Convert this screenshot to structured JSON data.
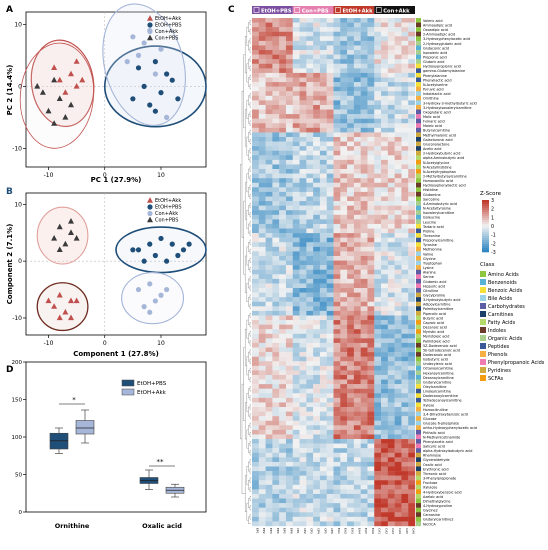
{
  "chart_data": [
    {
      "type": "scatter",
      "panel": "A",
      "xlabel": "PC 1 (27.9%)",
      "ylabel": "PC 2 (14.4%)",
      "xlim": [
        -14,
        18
      ],
      "ylim": [
        -13,
        12
      ],
      "xticks": [
        "-10",
        "0",
        "10"
      ],
      "yticks": [
        "-10",
        "0",
        "10"
      ],
      "legend": [
        "EtOH+Akk",
        "EtOH+PBS",
        "Con+Akk",
        "Con+PBS"
      ],
      "series": [
        {
          "name": "EtOH+Akk",
          "points": [
            [
              -8,
              1
            ],
            [
              -6,
              2
            ],
            [
              -5,
              0
            ],
            [
              -7,
              -1
            ],
            [
              -9,
              3
            ],
            [
              -5,
              4
            ],
            [
              -4,
              1
            ]
          ]
        },
        {
          "name": "EtOH+PBS",
          "points": [
            [
              6,
              3
            ],
            [
              9,
              4
            ],
            [
              11,
              2
            ],
            [
              7,
              0
            ],
            [
              10,
              -1
            ],
            [
              12,
              1
            ],
            [
              8,
              -3
            ],
            [
              13,
              -2
            ],
            [
              9,
              -4
            ],
            [
              5,
              -2
            ]
          ]
        },
        {
          "name": "Con+Akk",
          "points": [
            [
              5,
              8
            ],
            [
              7,
              7
            ],
            [
              8,
              9
            ],
            [
              6,
              5
            ],
            [
              10,
              6
            ],
            [
              4,
              4
            ],
            [
              9,
              2
            ],
            [
              11,
              -5
            ]
          ]
        },
        {
          "name": "Con+PBS",
          "points": [
            [
              -9,
              1
            ],
            [
              -11,
              -1
            ],
            [
              -8,
              -2
            ],
            [
              -10,
              -4
            ],
            [
              -6,
              -3
            ],
            [
              -7,
              -5
            ],
            [
              -12,
              0
            ],
            [
              -9,
              -6
            ]
          ]
        }
      ]
    },
    {
      "type": "scatter",
      "panel": "B",
      "xlabel": "Component 1 (27.8%)",
      "ylabel": "Component 2 (7.1%)",
      "xlim": [
        -14,
        18
      ],
      "ylim": [
        -13,
        12
      ],
      "xticks": [
        "-10",
        "0",
        "10"
      ],
      "yticks": [
        "-10",
        "0",
        "10"
      ],
      "legend": [
        "EtOH+Akk",
        "EtOH+PBS",
        "Con+Akk",
        "Con+PBS"
      ],
      "series": [
        {
          "name": "EtOH+Akk",
          "points": [
            [
              -8,
              -6
            ],
            [
              -6,
              -7
            ],
            [
              -9,
              -8
            ],
            [
              -7,
              -9
            ],
            [
              -5,
              -7
            ],
            [
              -10,
              -7
            ],
            [
              -6,
              -10
            ],
            [
              -8,
              -10
            ]
          ]
        },
        {
          "name": "EtOH+PBS",
          "points": [
            [
              6,
              2
            ],
            [
              8,
              3
            ],
            [
              10,
              4
            ],
            [
              12,
              3
            ],
            [
              14,
              2
            ],
            [
              7,
              0
            ],
            [
              9,
              1
            ],
            [
              11,
              0
            ],
            [
              13,
              1
            ],
            [
              5,
              2
            ],
            [
              15,
              3
            ]
          ]
        },
        {
          "name": "Con+Akk",
          "points": [
            [
              6,
              -5
            ],
            [
              8,
              -4
            ],
            [
              10,
              -6
            ],
            [
              7,
              -8
            ],
            [
              9,
              -7
            ],
            [
              11,
              -5
            ],
            [
              8,
              -9
            ]
          ]
        },
        {
          "name": "Con+PBS",
          "points": [
            [
              -8,
              6
            ],
            [
              -6,
              5
            ],
            [
              -9,
              4
            ],
            [
              -7,
              3
            ],
            [
              -5,
              4
            ],
            [
              -8,
              2
            ],
            [
              -6,
              7
            ]
          ]
        }
      ]
    },
    {
      "type": "box",
      "panel": "D",
      "ylim": [
        0,
        200
      ],
      "yticks": [
        "0",
        "50",
        "100",
        "150",
        "200"
      ],
      "categories": [
        "Ornithine",
        "Oxalic acid"
      ],
      "legend": [
        "EtOH+PBS",
        "EtOH+Akk"
      ],
      "series": [
        {
          "name": "EtOH+PBS",
          "boxes": [
            [
              78,
              84,
              95,
              105,
              112
            ],
            [
              30,
              38,
              42,
              46,
              56
            ]
          ]
        },
        {
          "name": "EtOH+Akk",
          "boxes": [
            [
              92,
              104,
              112,
              122,
              136
            ],
            [
              20,
              25,
              29,
              33,
              37
            ]
          ]
        }
      ],
      "significance": [
        "*",
        "**"
      ]
    },
    {
      "type": "heatmap",
      "panel": "C",
      "groups": [
        "EtOH+PBS",
        "Con+PBS",
        "EtOH+Akk",
        "Con+Akk"
      ],
      "scale_title": "Z-Score",
      "scale_ticks": [
        "3",
        "2",
        "1",
        "0",
        "-1",
        "-2",
        "-3"
      ],
      "class_title": "Class",
      "classes": [
        "Amino Acids",
        "Benzenoids",
        "Benzoic Acids",
        "Bile Acids",
        "Carbohydrates",
        "Carnitines",
        "Fatty Acids",
        "Indoles",
        "Organic Acids",
        "Peptides",
        "Phenols",
        "Phenylpropanoic Acids",
        "Pyridines",
        "SCFAs"
      ],
      "rows": [
        "Valeric acid",
        "Aminoadipic acid",
        "Oxoadipic acid",
        "2-Aminoadipic acid",
        "3-Hydroxyphenylacetic acid",
        "2-Hydroxyglutaric acid",
        "Glutaconic acid",
        "Isovaleric acid",
        "Propionic acid",
        "Glutaric acid",
        "Hydroxypropionic acid",
        "gamma-Glutamylalanine",
        "Phenylalanine",
        "Phenyllactic acid",
        "N-Acetylserine",
        "Pyruvic acid",
        "Indolelactic acid",
        "Ornithine",
        "3-Hydroxy-3-methylbutyric acid",
        "3-Hydroxyisovalerylcarnitine",
        "Oxoglutaric acid",
        "Malic acid",
        "Fumaric acid",
        "Maleic acid",
        "Butyrylcarnitine",
        "Methylmalonic acid",
        "Galacturonic acid",
        "Gluconolactone",
        "Acetic acid",
        "2-Hydroxybutyric acid",
        "alpha-Aminobutyric acid",
        "N-Acetylglycine",
        "N-Acetylhistidine",
        "N-Acetyltryptophan",
        "2-Methylbutyroylcarnitine",
        "Homovanillic acid",
        "Hydroxyphenyllactic acid",
        "Histidine",
        "Glutamine",
        "Sarcosine",
        "4-Aminobutyric acid",
        "N-Acetyltyrosine",
        "Isovalerylcarnitine",
        "Isoleucine",
        "Leucine",
        "Tartaric acid",
        "Proline",
        "Threonine",
        "Propionylcarnitine",
        "Tyrosine",
        "Methionine",
        "Valine",
        "Glycine",
        "Tryptophan",
        "Lysine",
        "Alanine",
        "Serine",
        "Glutamic acid",
        "Hippuric acid",
        "Citrulline",
        "Glycylproline",
        "3-Hydroxybutyric acid",
        "Adipoylcarnitine",
        "Palmitoylcarnitine",
        "Pipecolic acid",
        "Butyric acid",
        "Caproic acid",
        "Decanoic acid",
        "Myristic acid",
        "Myristoleic acid",
        "Palmitoleic acid",
        "5Z-Dodecenoic acid",
        "5E-tetradecenoic acid",
        "Dodecanoic acid",
        "Isobutyric acid",
        "Undecylenic acid",
        "Octanoylcarnitine",
        "Hexanoylcarnitine",
        "Decanoylcarnitine",
        "Glutarylcarnitine",
        "Oleylcarnitine",
        "Linoleylcarnitine",
        "Dodecanoylcarnitine",
        "Tetradecanoylcarnitine",
        "Xylose",
        "Homocitrulline",
        "3,4-Dihydroxybenzoic acid",
        "Glucose",
        "Glucose 6-phosphate",
        "ortho-Hydroxyphenylacetic acid",
        "Phthalic acid",
        "N-Methylnicotinamide",
        "Phenylacetic acid",
        "Salicylic acid",
        "alpha-Hydroxyisobutyric acid",
        "Rhamnose",
        "Glyceraldehyde",
        "Oxalic acid",
        "Erythronic acid",
        "Threonic acid",
        "3-Phenylpropionate",
        "Fructose",
        "Xylulose",
        "4-Hydroxybenzoic acid",
        "Azelaic acid",
        "Dimethylglycine",
        "4-Hydroxyproline",
        "Glycine2",
        "Carnosine",
        "Glutarylcarnitine2",
        "NicOCA"
      ],
      "row_labels_note": "row names as printed"
    }
  ],
  "panels": {
    "a": "A",
    "b": "B",
    "c": "C",
    "d": "D"
  },
  "d_labels": {
    "cat1": "Ornithine",
    "cat2": "Oxalic acid",
    "sig1": "*",
    "sig2": "**"
  },
  "colors": {
    "etoh_akk": "#c0504d",
    "etoh_pbs": "#1f4e79",
    "con_akk": "#a6b6d8",
    "con_pbs": "#3a3a3a",
    "hm_high": "#c0392b",
    "hm_low": "#2e86c1",
    "hm_mid": "#f2f2f2",
    "grp_etoh_pbs": "#7b4ea0",
    "grp_con_pbs": "#e57fb0",
    "grp_etoh_akk": "#c0392b",
    "grp_con_akk": "#111111"
  }
}
